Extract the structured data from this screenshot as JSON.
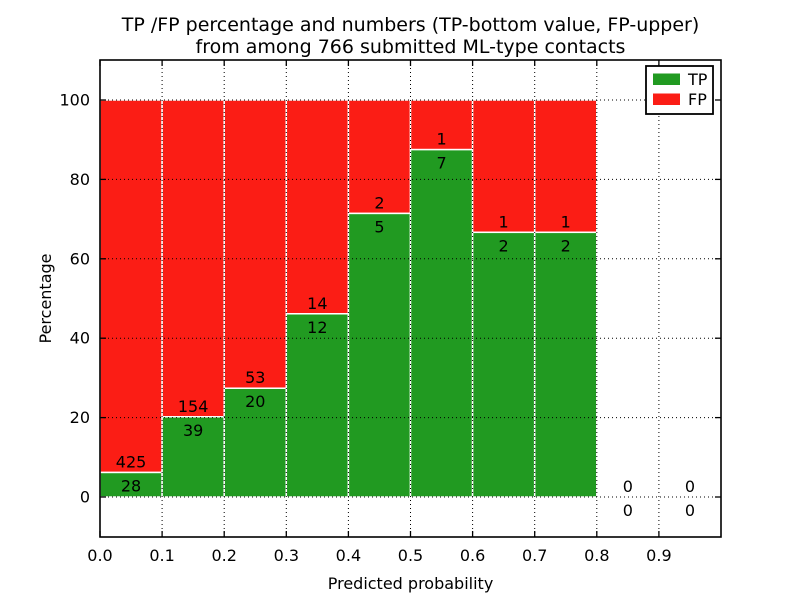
{
  "chart_data": {
    "type": "bar",
    "stacked": true,
    "title": "TP /FP percentage and numbers (TP-bottom value, FP-upper)",
    "subtitle": "from among 766 submitted ML-type contacts",
    "xlabel": "Predicted probability",
    "ylabel": "Percentage",
    "xlim": [
      0.0,
      1.0
    ],
    "ylim": [
      -10,
      110
    ],
    "grid": "dotted",
    "legend_position": "upper right",
    "total_contacts": 766,
    "series": [
      {
        "name": "TP",
        "color": "#219a21"
      },
      {
        "name": "FP",
        "color": "#fb1d15"
      }
    ],
    "bar_edge_color": "#ffffff",
    "x_ticks": {
      "values": [
        0.0,
        0.1,
        0.2,
        0.3,
        0.4,
        0.5,
        0.6,
        0.7,
        0.8,
        0.9
      ],
      "labels": [
        "0.0",
        "0.1",
        "0.2",
        "0.3",
        "0.4",
        "0.5",
        "0.6",
        "0.7",
        "0.8",
        "0.9"
      ]
    },
    "y_ticks": {
      "values": [
        0,
        20,
        40,
        60,
        80,
        100
      ],
      "labels": [
        "0",
        "20",
        "40",
        "60",
        "80",
        "100"
      ]
    },
    "bins": [
      {
        "x_start": 0.0,
        "x_end": 0.1,
        "tp": 28,
        "fp": 425,
        "tp_pct": 6.2,
        "fp_pct": 93.8
      },
      {
        "x_start": 0.1,
        "x_end": 0.2,
        "tp": 39,
        "fp": 154,
        "tp_pct": 20.2,
        "fp_pct": 79.8
      },
      {
        "x_start": 0.2,
        "x_end": 0.3,
        "tp": 20,
        "fp": 53,
        "tp_pct": 27.4,
        "fp_pct": 72.6
      },
      {
        "x_start": 0.3,
        "x_end": 0.4,
        "tp": 12,
        "fp": 14,
        "tp_pct": 46.2,
        "fp_pct": 53.8
      },
      {
        "x_start": 0.4,
        "x_end": 0.5,
        "tp": 5,
        "fp": 2,
        "tp_pct": 71.4,
        "fp_pct": 28.6
      },
      {
        "x_start": 0.5,
        "x_end": 0.6,
        "tp": 7,
        "fp": 1,
        "tp_pct": 87.5,
        "fp_pct": 12.5
      },
      {
        "x_start": 0.6,
        "x_end": 0.7,
        "tp": 2,
        "fp": 1,
        "tp_pct": 66.7,
        "fp_pct": 33.3
      },
      {
        "x_start": 0.7,
        "x_end": 0.8,
        "tp": 2,
        "fp": 1,
        "tp_pct": 66.7,
        "fp_pct": 33.3
      },
      {
        "x_start": 0.8,
        "x_end": 0.9,
        "tp": 0,
        "fp": 0,
        "tp_pct": 0,
        "fp_pct": 0
      },
      {
        "x_start": 0.9,
        "x_end": 1.0,
        "tp": 0,
        "fp": 0,
        "tp_pct": 0,
        "fp_pct": 0
      }
    ]
  }
}
